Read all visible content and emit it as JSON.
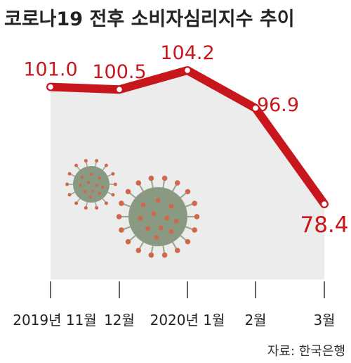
{
  "title": "코로나19 전후 소비자심리지수 추이",
  "source": "자료: 한국은행",
  "colors": {
    "line": "#c8161d",
    "area": "#ececec",
    "axis": "#333333",
    "virus_body": "#8a9a82",
    "virus_spike": "#d2664b"
  },
  "chart_data": {
    "type": "line",
    "categories": [
      "2019년 11월",
      "12월",
      "2020년 1월",
      "2월",
      "3월"
    ],
    "values": [
      101.0,
      100.5,
      104.2,
      96.9,
      78.4
    ],
    "value_labels": [
      "101.0",
      "100.5",
      "104.2",
      "96.9",
      "78.4"
    ],
    "title": "코로나19 전후 소비자심리지수 추이",
    "xlabel": "",
    "ylabel": "",
    "ylim": [
      75,
      106
    ],
    "grid": false
  }
}
